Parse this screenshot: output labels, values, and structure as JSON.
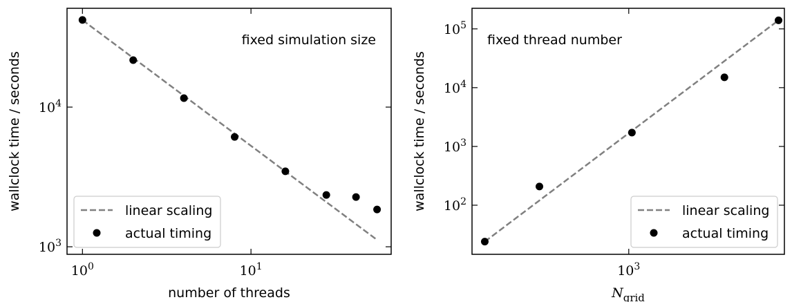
{
  "chart_data": [
    {
      "type": "scatter",
      "x_label": "number of threads",
      "y_label": "wallclock time / seconds",
      "annotation": "fixed simulation size",
      "log_x": true,
      "log_y": true,
      "legend": "lower left",
      "xlim": [
        0.81,
        67.9
      ],
      "ylim": [
        883,
        51000
      ],
      "xticks": [
        {
          "value": 1,
          "label": "10^0"
        },
        {
          "value": 10,
          "label": "10^1"
        }
      ],
      "yticks": [
        {
          "value": 1000,
          "label": "10^3"
        },
        {
          "value": 10000,
          "label": "10^4"
        }
      ],
      "series": [
        {
          "name": "linear scaling",
          "type": "line",
          "color": "#808080",
          "x": [
            1,
            56
          ],
          "values": [
            42000,
            1120
          ]
        },
        {
          "name": "actual timing",
          "type": "scatter",
          "color": "#000000",
          "x": [
            1,
            2,
            4,
            8,
            16,
            28,
            42,
            56
          ],
          "values": [
            42100,
            21700,
            11600,
            6120,
            3470,
            2350,
            2270,
            1850
          ]
        }
      ]
    },
    {
      "type": "scatter",
      "x_label": "N",
      "x_label_subscript": "grid",
      "y_label": "wallclock time / seconds",
      "annotation": "fixed thread number",
      "log_x": true,
      "log_y": true,
      "legend": "lower right",
      "xlim": [
        309,
        3210
      ],
      "ylim": [
        14.6,
        224000
      ],
      "xticks": [
        {
          "value": 1000,
          "label": "10^3"
        }
      ],
      "yticks": [
        {
          "value": 100,
          "label": "10^2"
        },
        {
          "value": 1000,
          "label": "10^3"
        },
        {
          "value": 10000,
          "label": "10^4"
        },
        {
          "value": 100000,
          "label": "10^5"
        }
      ],
      "series": [
        {
          "name": "linear scaling",
          "type": "line",
          "color": "#808080",
          "x": [
            340,
            3072
          ],
          "values": [
            24,
            140000
          ]
        },
        {
          "name": "actual timing",
          "type": "scatter",
          "color": "#000000",
          "x": [
            340,
            512,
            1024,
            2048,
            3072
          ],
          "values": [
            24,
            208,
            1720,
            15000,
            140000
          ]
        }
      ]
    }
  ]
}
